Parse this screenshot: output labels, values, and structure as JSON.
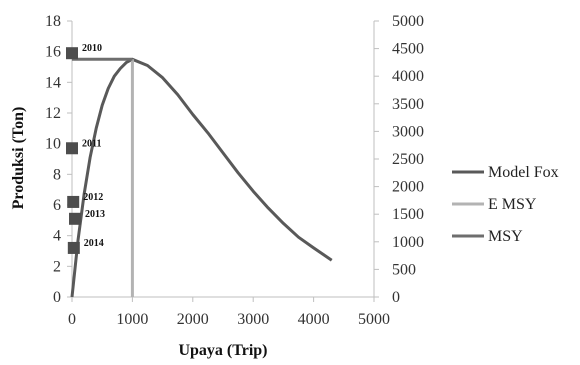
{
  "chart_data": {
    "type": "line",
    "xlabel": "Upaya (Trip)",
    "ylabel": "Produksi (Ton)",
    "xlim": [
      0,
      5000
    ],
    "ylim": [
      0,
      18
    ],
    "y2lim": [
      0,
      5000
    ],
    "x_ticks": [
      "0",
      "1000",
      "2000",
      "3000",
      "4000",
      "5000"
    ],
    "y_ticks": [
      "0",
      "2",
      "4",
      "6",
      "8",
      "10",
      "12",
      "14",
      "16",
      "18"
    ],
    "y2_ticks": [
      "0",
      "500",
      "1000",
      "1500",
      "2000",
      "2500",
      "3000",
      "3500",
      "4000",
      "4500",
      "5000"
    ],
    "grid": false,
    "legend_position": "right",
    "series": [
      {
        "name": "Model Fox",
        "color": "#595959",
        "x": [
          0,
          100,
          200,
          300,
          400,
          500,
          600,
          700,
          800,
          900,
          1000,
          1250,
          1500,
          1750,
          2000,
          2250,
          2500,
          2750,
          3000,
          3250,
          3500,
          3750,
          4000,
          4300
        ],
        "y": [
          0,
          3.7,
          6.7,
          9.1,
          11.0,
          12.5,
          13.6,
          14.4,
          14.9,
          15.3,
          15.5,
          15.1,
          14.3,
          13.2,
          11.9,
          10.7,
          9.4,
          8.1,
          6.9,
          5.8,
          4.8,
          3.9,
          3.2,
          2.4
        ]
      },
      {
        "name": "E MSY",
        "color": "#b3b3b3",
        "x": [
          1000,
          1000
        ],
        "y": [
          0,
          15.5
        ]
      },
      {
        "name": "MSY",
        "color": "#6e6e6e",
        "x": [
          0,
          1000
        ],
        "y": [
          15.5,
          15.5
        ]
      }
    ],
    "points": [
      {
        "label": "2010",
        "x": 0,
        "y": 15.9
      },
      {
        "label": "2011",
        "x": 0,
        "y": 9.7
      },
      {
        "label": "2012",
        "x": 20,
        "y": 6.2
      },
      {
        "label": "2013",
        "x": 50,
        "y": 5.1
      },
      {
        "label": "2014",
        "x": 30,
        "y": 3.2
      }
    ]
  }
}
